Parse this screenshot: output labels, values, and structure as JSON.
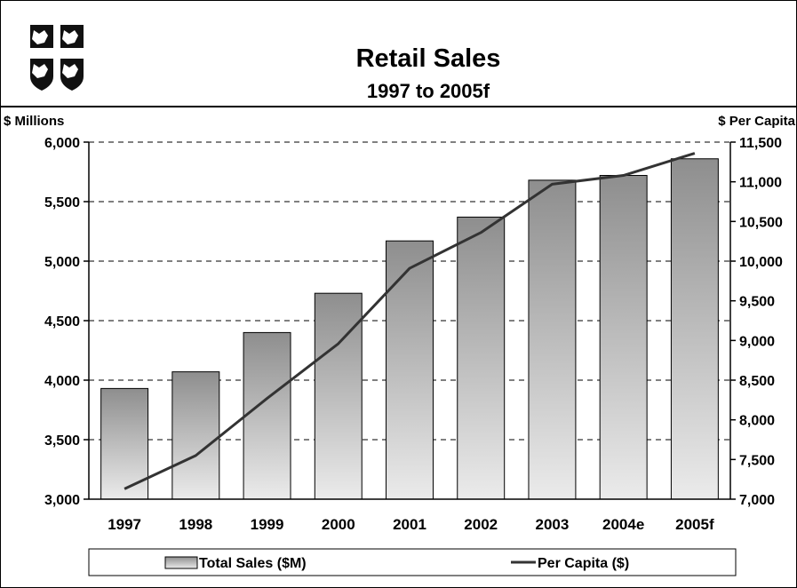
{
  "chart_data": {
    "type": "bar",
    "title": "Retail Sales",
    "subtitle": "1997 to 2005f",
    "y_left_label": "$ Millions",
    "y_right_label": "$ Per Capita",
    "categories": [
      "1997",
      "1998",
      "1999",
      "2000",
      "2001",
      "2002",
      "2003",
      "2004e",
      "2005f"
    ],
    "series": [
      {
        "name": "Total Sales ($M)",
        "type": "bar",
        "axis": "left",
        "values": [
          3930,
          4070,
          4400,
          4730,
          5170,
          5370,
          5680,
          5720,
          5860
        ]
      },
      {
        "name": "Per Capita ($)",
        "type": "line",
        "axis": "right",
        "values": [
          7130,
          7550,
          8270,
          8960,
          9910,
          10360,
          10970,
          11080,
          11360
        ]
      }
    ],
    "y_left": {
      "min": 3000,
      "max": 6000,
      "step": 500,
      "ticks": [
        "3,000",
        "3,500",
        "4,000",
        "4,500",
        "5,000",
        "5,500",
        "6,000"
      ]
    },
    "y_right": {
      "min": 7000,
      "max": 11500,
      "step": 500,
      "ticks": [
        "7,000",
        "7,500",
        "8,000",
        "8,500",
        "9,000",
        "9,500",
        "10,000",
        "10,500",
        "11,000",
        "11,500"
      ]
    },
    "grid": "dashed horizontal",
    "legend_position": "bottom",
    "colors": {
      "bar_top": "#8e8e8e",
      "bar_bottom": "#ebebeb",
      "line": "#333333"
    }
  },
  "logo": {
    "name": "coat-of-arms-shield"
  }
}
